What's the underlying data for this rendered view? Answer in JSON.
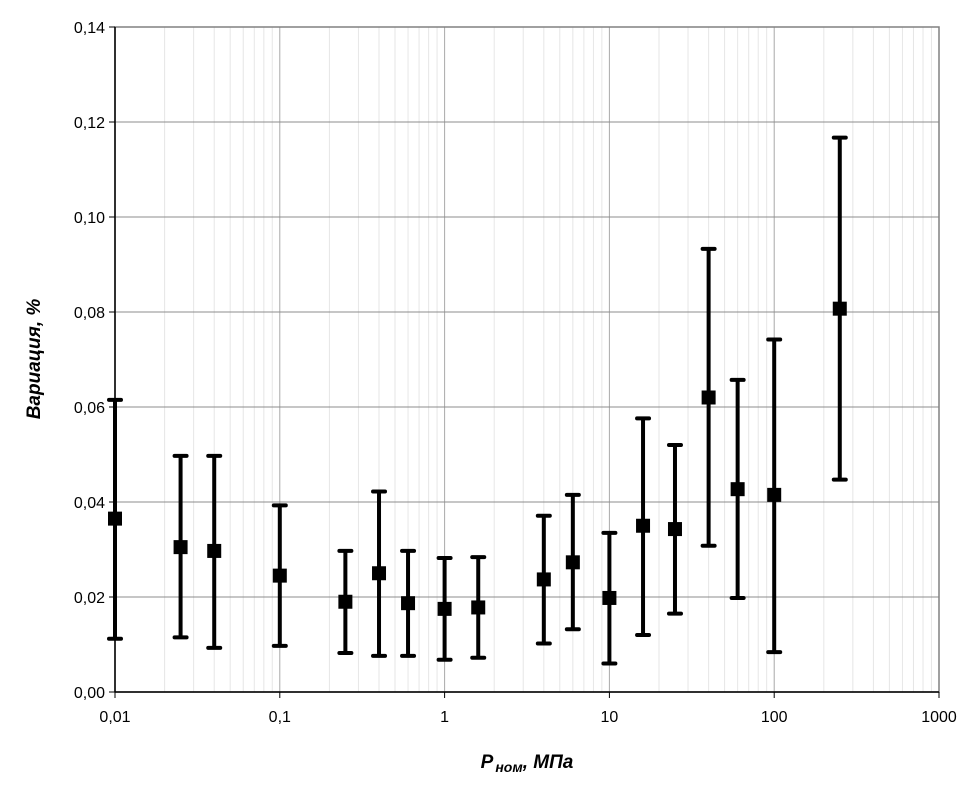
{
  "chart_data": {
    "type": "scatter",
    "title": "",
    "xlabel": "",
    "xlabel_main": "P",
    "xlabel_sub": "ном",
    "xlabel_unit": ", МПа",
    "ylabel": "Вариация, %",
    "xscale": "log",
    "xlim": [
      0.01,
      1000
    ],
    "ylim": [
      0,
      0.14
    ],
    "grid": true,
    "legend": "none",
    "x_tick_labels": [
      "0,01",
      "0,1",
      "1",
      "10",
      "100",
      "1000"
    ],
    "y_tick_labels": [
      "0,00",
      "0,02",
      "0,04",
      "0,06",
      "0,08",
      "0,10",
      "0,12",
      "0,14"
    ],
    "series": [
      {
        "marker": "square",
        "color": "#000000",
        "points": [
          {
            "x": 0.01,
            "y": 0.0365,
            "y_low": 0.0112,
            "y_high": 0.0615
          },
          {
            "x": 0.025,
            "y": 0.0305,
            "y_low": 0.0115,
            "y_high": 0.0497
          },
          {
            "x": 0.04,
            "y": 0.0297,
            "y_low": 0.0093,
            "y_high": 0.0497
          },
          {
            "x": 0.1,
            "y": 0.0245,
            "y_low": 0.0097,
            "y_high": 0.0393
          },
          {
            "x": 0.25,
            "y": 0.019,
            "y_low": 0.0082,
            "y_high": 0.0297
          },
          {
            "x": 0.4,
            "y": 0.025,
            "y_low": 0.0076,
            "y_high": 0.0422
          },
          {
            "x": 0.6,
            "y": 0.0187,
            "y_low": 0.0076,
            "y_high": 0.0297
          },
          {
            "x": 1,
            "y": 0.0175,
            "y_low": 0.0068,
            "y_high": 0.0282
          },
          {
            "x": 1.6,
            "y": 0.0178,
            "y_low": 0.0072,
            "y_high": 0.0284
          },
          {
            "x": 4,
            "y": 0.0237,
            "y_low": 0.0102,
            "y_high": 0.0371
          },
          {
            "x": 6,
            "y": 0.0273,
            "y_low": 0.0132,
            "y_high": 0.0415
          },
          {
            "x": 10,
            "y": 0.0198,
            "y_low": 0.006,
            "y_high": 0.0335
          },
          {
            "x": 16,
            "y": 0.035,
            "y_low": 0.012,
            "y_high": 0.0576
          },
          {
            "x": 25,
            "y": 0.0343,
            "y_low": 0.0165,
            "y_high": 0.052
          },
          {
            "x": 40,
            "y": 0.062,
            "y_low": 0.0308,
            "y_high": 0.0933
          },
          {
            "x": 60,
            "y": 0.0427,
            "y_low": 0.0198,
            "y_high": 0.0657
          },
          {
            "x": 100,
            "y": 0.0415,
            "y_low": 0.0084,
            "y_high": 0.0742
          },
          {
            "x": 250,
            "y": 0.0807,
            "y_low": 0.0447,
            "y_high": 0.1167
          }
        ]
      }
    ]
  }
}
